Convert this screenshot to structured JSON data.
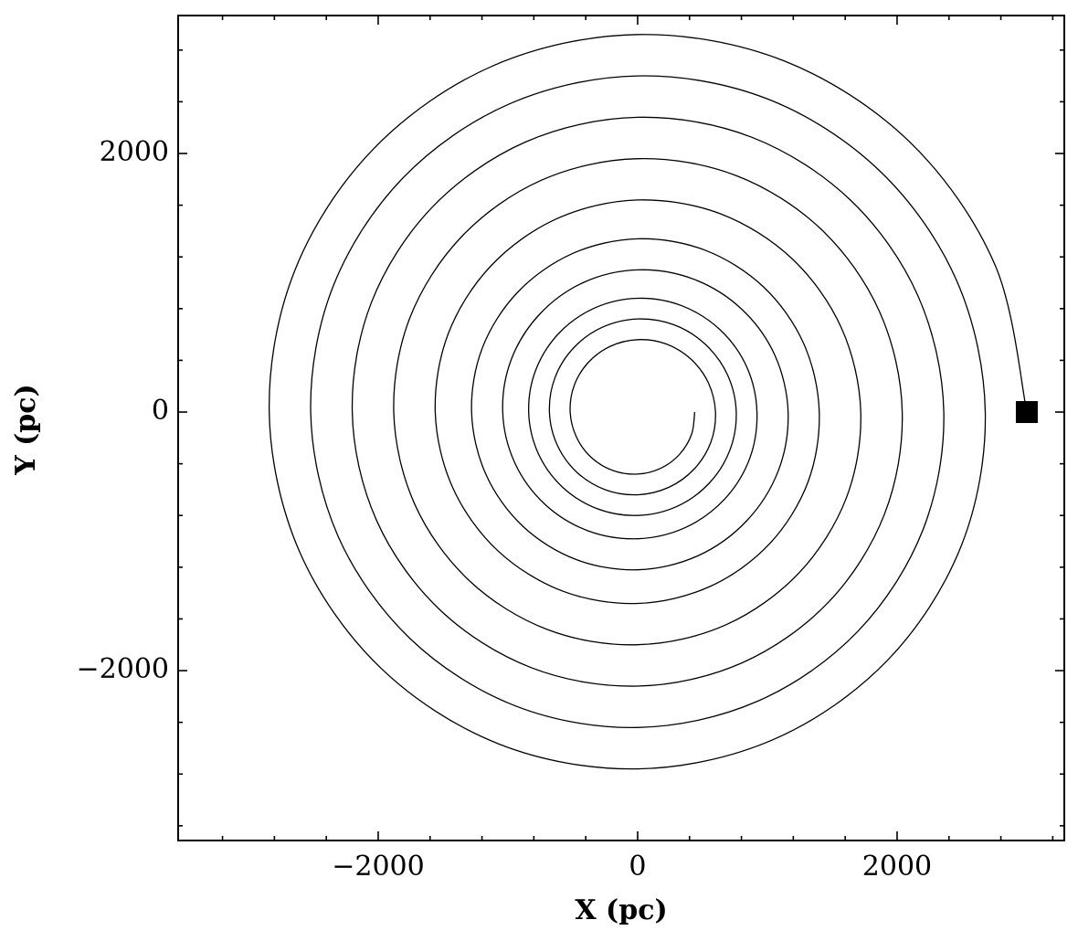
{
  "chart_data": {
    "type": "line",
    "xlabel": "X (pc)",
    "ylabel": "Y (pc)",
    "color": "#000000",
    "xlim": [
      -3542,
      3289
    ],
    "ylim": [
      -3314,
      3067
    ],
    "xticks": [
      {
        "value": -2000,
        "label": "−2000"
      },
      0,
      2000
    ],
    "yticks": [
      {
        "value": -2000,
        "label": "−2000"
      },
      0,
      2000
    ],
    "xminorticks": [
      -3200,
      -2800,
      -2400,
      -1600,
      -1200,
      -800,
      -400,
      400,
      800,
      1200,
      1600,
      2400,
      2800,
      3200
    ],
    "yminorticks": [
      -3200,
      -2800,
      -2400,
      -1600,
      -1200,
      -800,
      -400,
      400,
      800,
      1200,
      1600,
      2400,
      2800
    ],
    "marker": {
      "x": 3000,
      "y": 0
    },
    "x": [
      3000,
      2754,
      2093,
      1126,
      0,
      -1111,
      -2036,
      -2643,
      -2840,
      -2606,
      -1980,
      -1065,
      0,
      1049,
      1923,
      2495,
      2680,
      2458,
      1866,
      1003,
      0,
      -988,
      -1810,
      -2347,
      -2520,
      -2310,
      -1753,
      -942,
      0,
      927,
      1697,
      2199,
      2360,
      2162,
      1640,
      881,
      0,
      -866,
      -1584,
      -2051,
      -2200,
      -2014,
      -1527,
      -820,
      0,
      804,
      1471,
      1903,
      2040,
      1866,
      1414,
      758,
      0,
      -743,
      -1357,
      -1756,
      -1880,
      -1719,
      -1301,
      -697,
      0,
      682,
      1244,
      1608,
      1720,
      1571,
      1188,
      636,
      0,
      -620,
      -1131,
      -1460,
      -1560,
      -1423,
      -1075,
      -575,
      0,
      559,
      1018,
      1312,
      1400,
      1280,
      969,
      519,
      0,
      -507,
      -926,
      -1197,
      -1280,
      -1169,
      -884,
      -473,
      0,
      462,
      841,
      1086,
      1160,
      1058,
      799,
      427,
      0,
      -416,
      -756,
      -975,
      -1040,
      -947,
      -714,
      -381,
      0,
      370,
      672,
      864,
      920,
      841,
      636,
      341,
      0,
      -333,
      -608,
      -785,
      -840,
      -767,
      -580,
      -310,
      0,
      303,
      551,
      711,
      760,
      693,
      523,
      280,
      0,
      -272,
      -495,
      -638,
      -680,
      -619,
      -467,
      -249,
      0,
      241,
      438,
      564,
      600,
      545,
      410,
      218,
      0,
      -211,
      -382,
      -490,
      -520,
      -471,
      -354,
      -188,
      0,
      180,
      325,
      416,
      440
    ],
    "y": [
      0,
      1141,
      2093,
      2717,
      2920,
      2680,
      2036,
      1095,
      0,
      -1080,
      -1980,
      -2569,
      -2760,
      -2532,
      -1923,
      -1034,
      0,
      1019,
      1866,
      2421,
      2600,
      2384,
      1810,
      973,
      0,
      -958,
      -1753,
      -2273,
      -2440,
      -2236,
      -1697,
      -912,
      0,
      896,
      1640,
      2125,
      2280,
      2088,
      1584,
      850,
      0,
      -835,
      -1527,
      -1977,
      -2120,
      -1940,
      -1471,
      -789,
      0,
      774,
      1414,
      1830,
      1960,
      1793,
      1357,
      728,
      0,
      -712,
      -1301,
      -1682,
      -1800,
      -1645,
      -1244,
      -666,
      0,
      651,
      1188,
      1534,
      1640,
      1497,
      1131,
      605,
      0,
      -590,
      -1075,
      -1386,
      -1480,
      -1349,
      -1018,
      -544,
      0,
      530,
      969,
      1252,
      1340,
      1224,
      926,
      496,
      0,
      -484,
      -884,
      -1141,
      -1220,
      -1113,
      -841,
      -450,
      0,
      439,
      799,
      1030,
      1100,
      1003,
      756,
      404,
      0,
      -393,
      -714,
      -919,
      -980,
      -892,
      -672,
      -358,
      0,
      349,
      636,
      822,
      880,
      804,
      608,
      326,
      0,
      -318,
      -580,
      -748,
      -800,
      -730,
      -551,
      -295,
      0,
      287,
      523,
      675,
      720,
      656,
      495,
      264,
      0,
      -257,
      -467,
      -601,
      -640,
      -582,
      -438,
      -234,
      0,
      226,
      410,
      527,
      560,
      508,
      382,
      203,
      0,
      -195,
      -354,
      -453,
      -480,
      -434,
      -325,
      -172,
      0
    ]
  }
}
